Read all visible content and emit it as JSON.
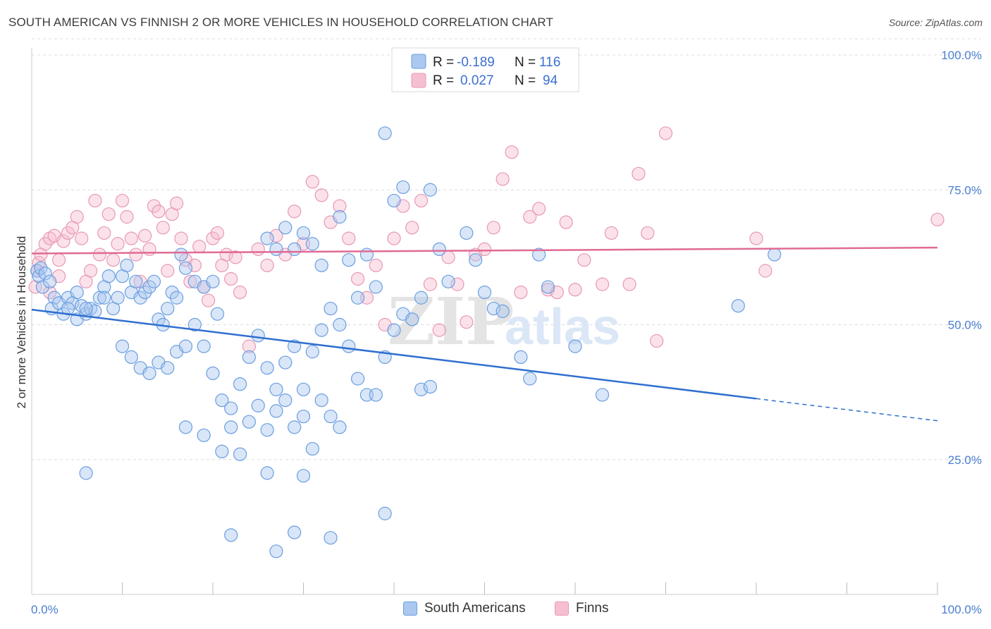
{
  "header": {
    "title": "SOUTH AMERICAN VS FINNISH 2 OR MORE VEHICLES IN HOUSEHOLD CORRELATION CHART",
    "source": "Source: ZipAtlas.com"
  },
  "colors": {
    "blue_fill": "#aac8f0",
    "blue_stroke": "#6a9ee0",
    "blue_line": "#2f6fd0",
    "pink_fill": "#f6bfd0",
    "pink_stroke": "#e898b4",
    "pink_line": "#e06a94",
    "tick_text": "#4a7fd0",
    "grid": "#dcdcdc"
  },
  "legend": {
    "r_label": "R =",
    "n_label": "N =",
    "blue": {
      "r": "-0.189",
      "n": "116"
    },
    "pink": {
      "r": "0.027",
      "n": "94"
    }
  },
  "watermark": {
    "zip": "ZIP",
    "atlas": "atlas"
  },
  "chart_data": {
    "type": "scatter",
    "title": "SOUTH AMERICAN VS FINNISH 2 OR MORE VEHICLES IN HOUSEHOLD CORRELATION CHART",
    "xlabel": "",
    "ylabel": "2 or more Vehicles in Household",
    "xlim": [
      0,
      100
    ],
    "ylim": [
      0,
      105
    ],
    "x_tick_labels": [
      "0.0%",
      "100.0%"
    ],
    "y_ticks": [
      25,
      50,
      75,
      100
    ],
    "y_tick_labels": [
      "25.0%",
      "50.0%",
      "75.0%",
      "100.0%"
    ],
    "grid": true,
    "legend_position": "top-center",
    "series": [
      {
        "name": "South Americans",
        "r": -0.189,
        "n": 116,
        "trend": {
          "x": [
            0,
            80
          ],
          "y": [
            52.8,
            36.3
          ],
          "dashed_to": [
            100,
            32.2
          ]
        },
        "points": [
          [
            0.6,
            60
          ],
          [
            0.8,
            59
          ],
          [
            1,
            60.5
          ],
          [
            1.5,
            59.5
          ],
          [
            1.2,
            57
          ],
          [
            2,
            58
          ],
          [
            2.5,
            55
          ],
          [
            2.2,
            53
          ],
          [
            3,
            54
          ],
          [
            3.5,
            52
          ],
          [
            4,
            55
          ],
          [
            4.5,
            54
          ],
          [
            5,
            51
          ],
          [
            5.5,
            53.5
          ],
          [
            6,
            52
          ],
          [
            6.5,
            53
          ],
          [
            7,
            52.5
          ],
          [
            7.5,
            55
          ],
          [
            8,
            57
          ],
          [
            8.5,
            59
          ],
          [
            9,
            53
          ],
          [
            9.5,
            55
          ],
          [
            10,
            59
          ],
          [
            10.5,
            61
          ],
          [
            11,
            56
          ],
          [
            11.5,
            58
          ],
          [
            12,
            55
          ],
          [
            12.5,
            56
          ],
          [
            13,
            57
          ],
          [
            13.5,
            58
          ],
          [
            14,
            51
          ],
          [
            14.5,
            50
          ],
          [
            15,
            53
          ],
          [
            15.5,
            56
          ],
          [
            16,
            55
          ],
          [
            16.5,
            63
          ],
          [
            17,
            60.5
          ],
          [
            18,
            58
          ],
          [
            19,
            57
          ],
          [
            20,
            58
          ],
          [
            20.5,
            52
          ],
          [
            5,
            56
          ],
          [
            6,
            53
          ],
          [
            4,
            53
          ],
          [
            8,
            55
          ],
          [
            10,
            46
          ],
          [
            11,
            44
          ],
          [
            12,
            42
          ],
          [
            13,
            41
          ],
          [
            14,
            43
          ],
          [
            15,
            42
          ],
          [
            16,
            45
          ],
          [
            17,
            46
          ],
          [
            18,
            50
          ],
          [
            19,
            46
          ],
          [
            20,
            41
          ],
          [
            21,
            36
          ],
          [
            22,
            34.5
          ],
          [
            23,
            39
          ],
          [
            24,
            44
          ],
          [
            25,
            48
          ],
          [
            26,
            42
          ],
          [
            27,
            38
          ],
          [
            28,
            43
          ],
          [
            29,
            46
          ],
          [
            30,
            38
          ],
          [
            31,
            45
          ],
          [
            32,
            49
          ],
          [
            33,
            53
          ],
          [
            34,
            50
          ],
          [
            35,
            46
          ],
          [
            36,
            40
          ],
          [
            37,
            37
          ],
          [
            38,
            37
          ],
          [
            39,
            44
          ],
          [
            40,
            49
          ],
          [
            41,
            52
          ],
          [
            42,
            51
          ],
          [
            43,
            38
          ],
          [
            44,
            38.5
          ],
          [
            17,
            31
          ],
          [
            19,
            29.5
          ],
          [
            21,
            26.5
          ],
          [
            22,
            31
          ],
          [
            23,
            26
          ],
          [
            24,
            32
          ],
          [
            25,
            35
          ],
          [
            26,
            30.5
          ],
          [
            27,
            34
          ],
          [
            28,
            36
          ],
          [
            29,
            31
          ],
          [
            30,
            33
          ],
          [
            31,
            27
          ],
          [
            32,
            36
          ],
          [
            33,
            33
          ],
          [
            34,
            31
          ],
          [
            6,
            22.5
          ],
          [
            22,
            11
          ],
          [
            26,
            22.5
          ],
          [
            27,
            8
          ],
          [
            29,
            11.5
          ],
          [
            30,
            22
          ],
          [
            33,
            10.5
          ],
          [
            39,
            15
          ],
          [
            26,
            66
          ],
          [
            27,
            64
          ],
          [
            28,
            68
          ],
          [
            29,
            64
          ],
          [
            30,
            67
          ],
          [
            31,
            65
          ],
          [
            32,
            61
          ],
          [
            37,
            63
          ],
          [
            38,
            57
          ],
          [
            39,
            85.5
          ],
          [
            40,
            73
          ],
          [
            41,
            75.5
          ],
          [
            44,
            75
          ],
          [
            45,
            64
          ],
          [
            49,
            62
          ],
          [
            50,
            56
          ],
          [
            51,
            53
          ],
          [
            52,
            52.5
          ],
          [
            54,
            44
          ],
          [
            55,
            40
          ],
          [
            56,
            63
          ],
          [
            57,
            57
          ],
          [
            60,
            46
          ],
          [
            63,
            37
          ],
          [
            78,
            53.5
          ],
          [
            82,
            63
          ],
          [
            43,
            55
          ],
          [
            46,
            58
          ],
          [
            35,
            62
          ],
          [
            36,
            55
          ],
          [
            48,
            67
          ],
          [
            34,
            70
          ]
        ]
      },
      {
        "name": "Finns",
        "r": 0.027,
        "n": 94,
        "trend": {
          "x": [
            0,
            100
          ],
          "y": [
            63.2,
            64.3
          ]
        },
        "points": [
          [
            0.4,
            57
          ],
          [
            0.6,
            60
          ],
          [
            0.8,
            61.5
          ],
          [
            1,
            63
          ],
          [
            1.5,
            65
          ],
          [
            2,
            66
          ],
          [
            2.5,
            66.5
          ],
          [
            3,
            62
          ],
          [
            3.5,
            65.5
          ],
          [
            4,
            67
          ],
          [
            4.5,
            68
          ],
          [
            5,
            70
          ],
          [
            5.5,
            66
          ],
          [
            6,
            58
          ],
          [
            6.5,
            60
          ],
          [
            7,
            73
          ],
          [
            7.5,
            63
          ],
          [
            8,
            67
          ],
          [
            8.5,
            70.5
          ],
          [
            9,
            62
          ],
          [
            9.5,
            65
          ],
          [
            10,
            73
          ],
          [
            10.5,
            70
          ],
          [
            11,
            66
          ],
          [
            11.5,
            63
          ],
          [
            12,
            58
          ],
          [
            12.5,
            66.5
          ],
          [
            13,
            64
          ],
          [
            13.5,
            72
          ],
          [
            14,
            71
          ],
          [
            14.5,
            68
          ],
          [
            15,
            60
          ],
          [
            15.5,
            70.5
          ],
          [
            16,
            72.5
          ],
          [
            16.5,
            66
          ],
          [
            17,
            62
          ],
          [
            17.5,
            58
          ],
          [
            18,
            61
          ],
          [
            18.5,
            64.5
          ],
          [
            19,
            57
          ],
          [
            19.5,
            54.5
          ],
          [
            20,
            66
          ],
          [
            20.5,
            67
          ],
          [
            21,
            61
          ],
          [
            21.5,
            63
          ],
          [
            22,
            58.5
          ],
          [
            22.5,
            62.5
          ],
          [
            23,
            56
          ],
          [
            24,
            46
          ],
          [
            25,
            64
          ],
          [
            26,
            61
          ],
          [
            27,
            66.5
          ],
          [
            28,
            63
          ],
          [
            29,
            71
          ],
          [
            30,
            65
          ],
          [
            31,
            76.5
          ],
          [
            32,
            74
          ],
          [
            33,
            69
          ],
          [
            34,
            72
          ],
          [
            35,
            66
          ],
          [
            36,
            58.5
          ],
          [
            37,
            55
          ],
          [
            38,
            61
          ],
          [
            39,
            50
          ],
          [
            40,
            66
          ],
          [
            41,
            72
          ],
          [
            42,
            68
          ],
          [
            43,
            73
          ],
          [
            44,
            57.5
          ],
          [
            45,
            49
          ],
          [
            46,
            62.5
          ],
          [
            47,
            57.5
          ],
          [
            48,
            50.5
          ],
          [
            49,
            63
          ],
          [
            50,
            64
          ],
          [
            51,
            68
          ],
          [
            52,
            77
          ],
          [
            53,
            82
          ],
          [
            54,
            56
          ],
          [
            55,
            70
          ],
          [
            56,
            71.5
          ],
          [
            57,
            56.5
          ],
          [
            58,
            56
          ],
          [
            59,
            69
          ],
          [
            60,
            56.5
          ],
          [
            61,
            62
          ],
          [
            63,
            57.5
          ],
          [
            64,
            67
          ],
          [
            66,
            57.5
          ],
          [
            67,
            78
          ],
          [
            68,
            67
          ],
          [
            69,
            47
          ],
          [
            70,
            85.5
          ],
          [
            80,
            66
          ],
          [
            81,
            60
          ],
          [
            100,
            69.5
          ],
          [
            2,
            56
          ],
          [
            3,
            59
          ]
        ]
      }
    ]
  },
  "bottom_legend": {
    "items": [
      {
        "label": "South Americans"
      },
      {
        "label": "Finns"
      }
    ]
  }
}
